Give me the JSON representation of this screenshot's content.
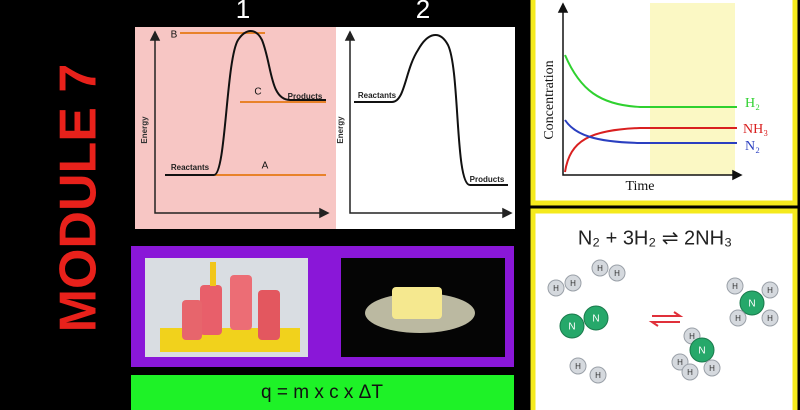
{
  "side_title": "MODULE 7",
  "panel_numbers": [
    "1",
    "2"
  ],
  "energy_diagram_1": {
    "y_axis": "Energy",
    "labels": {
      "b": "B",
      "c": "C",
      "a": "A",
      "products": "Products",
      "reactants": "Reactants"
    }
  },
  "energy_diagram_2": {
    "y_axis": "Energy",
    "labels": {
      "reactants": "Reactants",
      "products": "Products"
    }
  },
  "concentration_graph": {
    "y_axis": "Concentration",
    "x_axis": "Time",
    "curves": [
      "H₂",
      "NH₃",
      "N₂"
    ]
  },
  "formula": "q = m x c x ΔT",
  "equation": "N₂ + 3H₂ ⇌ 2NH₃",
  "atom_labels": [
    "H",
    "H",
    "H",
    "H",
    "H",
    "H",
    "N",
    "N",
    "H",
    "H",
    "N",
    "H",
    "H",
    "H",
    "N",
    "H",
    "H",
    "H"
  ]
}
